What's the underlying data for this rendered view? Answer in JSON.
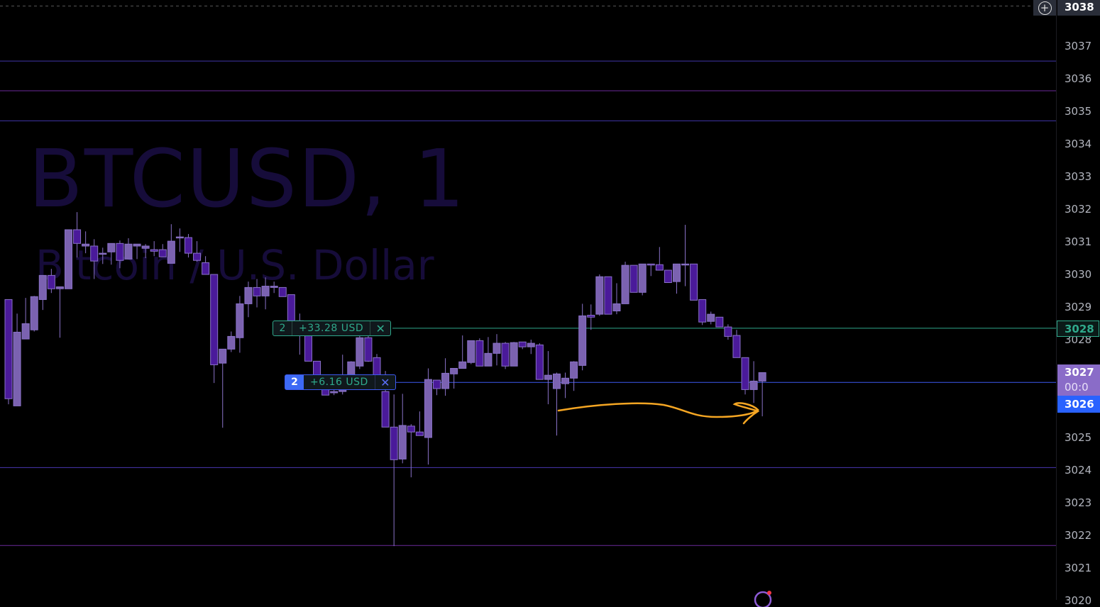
{
  "symbol_watermark": "BTCUSD, 1",
  "symbol_description": "Bitcoin / U.S. Dollar",
  "colors": {
    "up": "#7b62b0",
    "down": "#4a1a9a",
    "position_profit": "#2fa98b",
    "order_line": "#3d5af1",
    "drawing": "#f5a623"
  },
  "axis": {
    "ticks": [
      "3037",
      "3036",
      "3035",
      "3034",
      "3033",
      "3032",
      "3031",
      "3030",
      "3029",
      "3028",
      "3025",
      "3024",
      "3023",
      "3022",
      "3021",
      "3020"
    ],
    "crosshair_label": "3038",
    "position_label": "3028",
    "last_price_label": "3027",
    "countdown_label": "00:0",
    "order_label": "3026"
  },
  "positions": [
    {
      "qty": "2",
      "pnl": "+33.28 USD",
      "close_icon": "close-icon"
    },
    {
      "qty": "2",
      "pnl": "+6.16 USD",
      "close_icon": "close-icon"
    }
  ],
  "price_levels": [
    3036.54,
    3035.63,
    3034.71,
    3024.08,
    3021.69
  ],
  "position_prices": [
    3028.35,
    3026.69
  ],
  "candles": [
    [
      3029.23,
      3029.23,
      3026.02,
      3026.19
    ],
    [
      3025.97,
      3028.8,
      3025.97,
      3028.23
    ],
    [
      3028.02,
      3029.28,
      3028.02,
      3028.49
    ],
    [
      3028.3,
      3029.34,
      3028.25,
      3029.32
    ],
    [
      3029.23,
      3029.97,
      3028.91,
      3029.97
    ],
    [
      3029.97,
      3030.17,
      3029.43,
      3029.56
    ],
    [
      3029.56,
      3029.62,
      3028.06,
      3029.62
    ],
    [
      3029.56,
      3031.37,
      3029.56,
      3031.37
    ],
    [
      3031.37,
      3031.91,
      3030.52,
      3030.95
    ],
    [
      3030.87,
      3031.32,
      3030.65,
      3030.93
    ],
    [
      3030.87,
      3031.08,
      3029.86,
      3030.41
    ],
    [
      3030.65,
      3030.82,
      3030.32,
      3030.65
    ],
    [
      3030.69,
      3030.95,
      3030.3,
      3030.95
    ],
    [
      3030.95,
      3031.04,
      3030.19,
      3030.43
    ],
    [
      3030.47,
      3031.11,
      3030.47,
      3030.93
    ],
    [
      3030.87,
      3030.93,
      3030.47,
      3030.93
    ],
    [
      3030.8,
      3030.93,
      3030.5,
      3030.87
    ],
    [
      3030.76,
      3031.02,
      3030.56,
      3030.71
    ],
    [
      3030.76,
      3030.93,
      3030.54,
      3030.54
    ],
    [
      3030.34,
      3031.54,
      3030.34,
      3031.02
    ],
    [
      3031.13,
      3031.41,
      3030.69,
      3031.15
    ],
    [
      3031.13,
      3031.24,
      3030.52,
      3030.65
    ],
    [
      3030.65,
      3031.02,
      3030.39,
      3030.43
    ],
    [
      3030.36,
      3030.56,
      3030.0,
      3030.0
    ],
    [
      3030.0,
      3030.0,
      3026.67,
      3027.23
    ],
    [
      3027.28,
      3027.71,
      3025.3,
      3027.71
    ],
    [
      3027.71,
      3028.25,
      3027.62,
      3028.1
    ],
    [
      3028.06,
      3029.34,
      3027.6,
      3029.1
    ],
    [
      3029.1,
      3029.78,
      3028.69,
      3029.6
    ],
    [
      3029.6,
      3029.86,
      3028.99,
      3029.34
    ],
    [
      3029.34,
      3029.91,
      3028.93,
      3029.64
    ],
    [
      3029.6,
      3029.78,
      3029.43,
      3029.64
    ],
    [
      3029.6,
      3029.6,
      3029.32,
      3029.32
    ],
    [
      3029.38,
      3029.38,
      3028.58,
      3028.58
    ],
    [
      3028.58,
      3028.8,
      3027.54,
      3028.28
    ],
    [
      3028.28,
      3028.3,
      3027.34,
      3027.34
    ],
    [
      3027.34,
      3027.34,
      3026.47,
      3026.56
    ],
    [
      3026.56,
      3026.56,
      3026.3,
      3026.3
    ],
    [
      3026.37,
      3026.47,
      3026.3,
      3026.41
    ],
    [
      3026.41,
      3027.54,
      3026.32,
      3026.89
    ],
    [
      3026.89,
      3027.34,
      3026.67,
      3027.32
    ],
    [
      3027.19,
      3028.41,
      3027.1,
      3028.06
    ],
    [
      3028.06,
      3028.19,
      3027.32,
      3027.34
    ],
    [
      3027.45,
      3027.56,
      3026.47,
      3026.5
    ],
    [
      3026.41,
      3027.04,
      3025.32,
      3025.32
    ],
    [
      3025.32,
      3026.32,
      3021.67,
      3024.32
    ],
    [
      3024.34,
      3026.34,
      3024.21,
      3025.37
    ],
    [
      3025.35,
      3025.41,
      3023.78,
      3025.17
    ],
    [
      3025.17,
      3025.8,
      3025.06,
      3025.06
    ],
    [
      3025.0,
      3027.12,
      3024.17,
      3026.78
    ],
    [
      3026.76,
      3026.76,
      3026.3,
      3026.5
    ],
    [
      3026.5,
      3027.43,
      3026.28,
      3026.97
    ],
    [
      3026.95,
      3027.12,
      3026.5,
      3027.12
    ],
    [
      3027.12,
      3028.13,
      3027.12,
      3027.32
    ],
    [
      3027.3,
      3027.97,
      3027.25,
      3027.97
    ],
    [
      3027.97,
      3028.04,
      3027.19,
      3027.19
    ],
    [
      3027.19,
      3028.08,
      3027.19,
      3027.58
    ],
    [
      3027.58,
      3028.17,
      3027.21,
      3027.89
    ],
    [
      3027.89,
      3027.93,
      3027.1,
      3027.19
    ],
    [
      3027.19,
      3027.93,
      3027.19,
      3027.91
    ],
    [
      3027.93,
      3027.93,
      3027.71,
      3027.78
    ],
    [
      3027.78,
      3028.0,
      3027.56,
      3027.89
    ],
    [
      3027.84,
      3027.89,
      3026.78,
      3026.78
    ],
    [
      3026.78,
      3027.65,
      3026.02,
      3026.91
    ],
    [
      3026.5,
      3026.99,
      3025.06,
      3026.95
    ],
    [
      3026.65,
      3026.99,
      3026.21,
      3026.82
    ],
    [
      3026.82,
      3027.34,
      3026.43,
      3027.32
    ],
    [
      3027.21,
      3029.1,
      3027.06,
      3028.73
    ],
    [
      3028.75,
      3029.08,
      3028.3,
      3028.69
    ],
    [
      3028.78,
      3030.0,
      3028.73,
      3029.93
    ],
    [
      3029.93,
      3029.93,
      3028.78,
      3028.78
    ],
    [
      3028.88,
      3029.73,
      3028.78,
      3029.1
    ],
    [
      3029.1,
      3030.39,
      3029.1,
      3030.28
    ],
    [
      3030.28,
      3030.28,
      3029.45,
      3029.45
    ],
    [
      3029.45,
      3030.32,
      3029.36,
      3030.32
    ],
    [
      3030.32,
      3030.32,
      3029.95,
      3030.3
    ],
    [
      3030.3,
      3030.84,
      3030.13,
      3030.13
    ],
    [
      3030.13,
      3030.13,
      3029.75,
      3029.75
    ],
    [
      3029.78,
      3030.32,
      3029.41,
      3030.32
    ],
    [
      3030.32,
      3031.52,
      3029.64,
      3030.32
    ],
    [
      3030.32,
      3030.32,
      3029.21,
      3029.21
    ],
    [
      3029.23,
      3029.23,
      3028.45,
      3028.54
    ],
    [
      3028.56,
      3028.86,
      3028.47,
      3028.78
    ],
    [
      3028.69,
      3028.69,
      3028.39,
      3028.39
    ],
    [
      3028.39,
      3028.47,
      3028.0,
      3028.1
    ],
    [
      3028.13,
      3028.3,
      3027.45,
      3027.45
    ],
    [
      3027.45,
      3027.45,
      3026.32,
      3026.47
    ],
    [
      3026.47,
      3027.34,
      3026.06,
      3026.73
    ],
    [
      3026.73,
      3026.99,
      3025.65,
      3026.99
    ]
  ]
}
